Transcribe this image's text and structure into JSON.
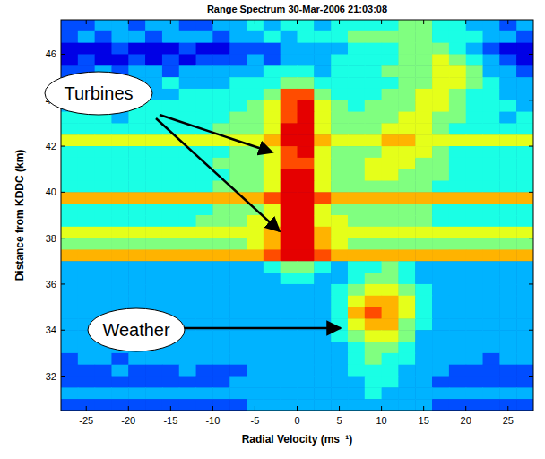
{
  "chart_data": {
    "type": "heatmap",
    "title": "Range Spectrum 30-Mar-2006 21:03:08",
    "x_label": "Radial Velocity (ms⁻¹)",
    "y_label": "Distance from KDDC (km)",
    "annotations": [
      "Turbines",
      "Weather"
    ],
    "xlim": [
      -28,
      28
    ],
    "ylim": [
      30.5,
      47.5
    ],
    "xticks": [
      -25,
      -20,
      -15,
      -10,
      -5,
      0,
      5,
      10,
      15,
      20,
      25
    ],
    "yticks": [
      32,
      34,
      36,
      38,
      40,
      42,
      44,
      46
    ],
    "zlim": [
      0,
      10
    ],
    "grid": false,
    "x": [
      -27,
      -25,
      -23,
      -21,
      -19,
      -17,
      -15,
      -13,
      -11,
      -9,
      -7,
      -5,
      -3,
      -1,
      1,
      3,
      5,
      7,
      9,
      11,
      13,
      15,
      17,
      19,
      21,
      23,
      25,
      27
    ],
    "y": [
      47.25,
      46.75,
      46.25,
      45.75,
      45.25,
      44.75,
      44.25,
      43.75,
      43.25,
      42.75,
      42.25,
      41.75,
      41.25,
      40.75,
      40.25,
      39.75,
      39.25,
      38.75,
      38.25,
      37.75,
      37.25,
      36.75,
      36.25,
      35.75,
      35.25,
      34.75,
      34.25,
      33.75,
      33.25,
      32.75,
      32.25,
      31.75,
      31.25,
      30.75
    ],
    "z": [
      [
        2,
        2,
        3,
        3,
        2,
        3,
        3,
        2,
        2,
        3,
        3,
        4,
        3,
        4,
        4,
        3,
        4,
        4,
        4,
        4,
        5,
        5,
        4,
        4,
        3,
        3,
        2,
        3
      ],
      [
        2,
        3,
        2,
        3,
        3,
        2,
        3,
        3,
        3,
        2,
        3,
        3,
        4,
        3,
        4,
        4,
        4,
        5,
        5,
        5,
        5,
        5,
        4,
        4,
        4,
        3,
        3,
        2
      ],
      [
        1,
        1,
        1,
        2,
        1,
        1,
        1,
        2,
        1,
        1,
        2,
        2,
        2,
        3,
        3,
        3,
        3,
        4,
        4,
        4,
        5,
        5,
        5,
        4,
        3,
        2,
        1,
        1
      ],
      [
        1,
        2,
        1,
        1,
        2,
        1,
        2,
        1,
        2,
        2,
        2,
        3,
        2,
        3,
        3,
        3,
        4,
        4,
        4,
        4,
        5,
        5,
        6,
        5,
        4,
        3,
        2,
        1
      ],
      [
        2,
        2,
        3,
        2,
        3,
        3,
        2,
        3,
        3,
        3,
        3,
        3,
        4,
        4,
        4,
        3,
        4,
        4,
        4,
        5,
        5,
        5,
        6,
        6,
        5,
        3,
        3,
        2
      ],
      [
        3,
        3,
        3,
        3,
        3,
        3,
        4,
        3,
        3,
        3,
        4,
        4,
        4,
        5,
        5,
        4,
        4,
        4,
        4,
        4,
        5,
        5,
        6,
        6,
        5,
        4,
        3,
        3
      ],
      [
        3,
        3,
        4,
        3,
        4,
        3,
        3,
        4,
        4,
        4,
        4,
        4,
        5,
        8,
        8,
        5,
        4,
        4,
        4,
        5,
        5,
        6,
        6,
        5,
        4,
        4,
        3,
        3
      ],
      [
        3,
        4,
        3,
        4,
        4,
        4,
        4,
        4,
        4,
        4,
        4,
        5,
        6,
        8,
        9,
        6,
        5,
        4,
        5,
        5,
        5,
        6,
        6,
        5,
        4,
        4,
        4,
        3
      ],
      [
        4,
        4,
        4,
        3,
        4,
        4,
        4,
        4,
        4,
        4,
        5,
        5,
        6,
        8,
        9,
        6,
        5,
        5,
        5,
        5,
        6,
        6,
        5,
        5,
        4,
        4,
        3,
        4
      ],
      [
        4,
        4,
        4,
        4,
        4,
        4,
        4,
        4,
        4,
        5,
        5,
        5,
        6,
        9,
        9,
        6,
        5,
        5,
        5,
        6,
        6,
        6,
        5,
        4,
        4,
        4,
        4,
        4
      ],
      [
        6,
        6,
        6,
        6,
        6,
        6,
        6,
        6,
        6,
        6,
        6,
        6,
        7,
        9,
        9,
        7,
        6,
        6,
        6,
        7,
        7,
        6,
        6,
        6,
        6,
        6,
        6,
        6
      ],
      [
        4,
        4,
        4,
        4,
        4,
        4,
        4,
        4,
        4,
        4,
        5,
        5,
        6,
        8,
        9,
        6,
        5,
        5,
        5,
        6,
        6,
        6,
        5,
        4,
        4,
        4,
        4,
        4
      ],
      [
        4,
        4,
        4,
        4,
        4,
        4,
        4,
        4,
        4,
        5,
        5,
        5,
        6,
        8,
        8,
        6,
        5,
        5,
        6,
        6,
        6,
        5,
        5,
        4,
        4,
        4,
        4,
        4
      ],
      [
        4,
        4,
        4,
        4,
        4,
        4,
        4,
        4,
        4,
        4,
        5,
        5,
        6,
        9,
        9,
        6,
        5,
        5,
        6,
        6,
        5,
        5,
        5,
        4,
        4,
        4,
        4,
        4
      ],
      [
        4,
        4,
        4,
        4,
        4,
        4,
        4,
        4,
        4,
        5,
        5,
        5,
        6,
        9,
        9,
        6,
        5,
        5,
        5,
        5,
        5,
        5,
        4,
        4,
        4,
        4,
        4,
        4
      ],
      [
        7,
        7,
        7,
        7,
        7,
        7,
        7,
        7,
        7,
        7,
        7,
        7,
        8,
        9,
        9,
        8,
        7,
        7,
        7,
        7,
        7,
        7,
        7,
        7,
        7,
        7,
        7,
        7
      ],
      [
        4,
        4,
        4,
        4,
        4,
        4,
        4,
        4,
        4,
        5,
        5,
        5,
        6,
        9,
        9,
        6,
        5,
        5,
        5,
        5,
        5,
        5,
        4,
        4,
        4,
        4,
        4,
        4
      ],
      [
        4,
        4,
        4,
        4,
        4,
        4,
        4,
        4,
        5,
        5,
        5,
        6,
        6,
        9,
        9,
        6,
        6,
        5,
        5,
        5,
        5,
        5,
        4,
        4,
        4,
        4,
        4,
        4
      ],
      [
        6,
        6,
        6,
        6,
        6,
        6,
        6,
        6,
        6,
        6,
        6,
        6,
        7,
        9,
        9,
        7,
        6,
        6,
        6,
        6,
        6,
        6,
        6,
        6,
        6,
        6,
        6,
        6
      ],
      [
        5,
        5,
        5,
        5,
        5,
        5,
        5,
        5,
        5,
        5,
        5,
        6,
        7,
        9,
        9,
        7,
        6,
        5,
        5,
        5,
        5,
        5,
        5,
        5,
        5,
        5,
        5,
        5
      ],
      [
        7,
        7,
        7,
        7,
        7,
        7,
        7,
        7,
        7,
        7,
        7,
        7,
        8,
        9,
        9,
        8,
        7,
        7,
        7,
        7,
        7,
        7,
        7,
        7,
        7,
        7,
        7,
        7
      ],
      [
        3,
        3,
        3,
        3,
        3,
        3,
        3,
        3,
        3,
        3,
        3,
        3,
        4,
        5,
        5,
        4,
        3,
        4,
        4,
        5,
        4,
        3,
        3,
        3,
        3,
        3,
        3,
        3
      ],
      [
        3,
        3,
        3,
        3,
        3,
        3,
        3,
        3,
        3,
        3,
        3,
        3,
        3,
        4,
        4,
        3,
        3,
        4,
        5,
        5,
        4,
        3,
        3,
        3,
        3,
        3,
        3,
        3
      ],
      [
        3,
        3,
        3,
        3,
        3,
        3,
        3,
        3,
        3,
        3,
        3,
        3,
        3,
        3,
        3,
        3,
        4,
        5,
        6,
        6,
        5,
        4,
        3,
        3,
        3,
        3,
        3,
        3
      ],
      [
        3,
        3,
        3,
        3,
        3,
        3,
        3,
        3,
        3,
        3,
        3,
        3,
        3,
        3,
        3,
        3,
        4,
        6,
        7,
        7,
        6,
        4,
        3,
        3,
        3,
        3,
        3,
        3
      ],
      [
        3,
        3,
        3,
        3,
        3,
        3,
        3,
        3,
        3,
        3,
        3,
        3,
        3,
        3,
        3,
        3,
        4,
        7,
        8,
        7,
        6,
        4,
        3,
        3,
        3,
        3,
        3,
        3
      ],
      [
        3,
        3,
        3,
        3,
        3,
        3,
        3,
        3,
        3,
        3,
        3,
        3,
        3,
        3,
        3,
        3,
        4,
        6,
        7,
        7,
        5,
        4,
        3,
        3,
        3,
        3,
        3,
        3
      ],
      [
        3,
        3,
        3,
        3,
        3,
        3,
        3,
        3,
        3,
        3,
        3,
        3,
        3,
        3,
        3,
        3,
        4,
        5,
        6,
        6,
        5,
        3,
        3,
        3,
        3,
        3,
        3,
        3
      ],
      [
        3,
        3,
        3,
        3,
        3,
        3,
        3,
        3,
        3,
        3,
        3,
        3,
        3,
        3,
        3,
        3,
        3,
        4,
        5,
        5,
        4,
        3,
        3,
        3,
        3,
        3,
        3,
        3
      ],
      [
        2,
        3,
        3,
        2,
        3,
        3,
        3,
        3,
        3,
        3,
        3,
        3,
        3,
        3,
        3,
        3,
        3,
        4,
        5,
        4,
        4,
        3,
        3,
        3,
        3,
        2,
        3,
        3
      ],
      [
        2,
        2,
        2,
        3,
        2,
        2,
        2,
        3,
        2,
        2,
        2,
        3,
        3,
        3,
        3,
        3,
        3,
        4,
        4,
        4,
        3,
        3,
        3,
        2,
        2,
        2,
        2,
        2
      ],
      [
        2,
        2,
        2,
        2,
        2,
        2,
        2,
        2,
        2,
        2,
        3,
        3,
        3,
        3,
        3,
        3,
        3,
        3,
        4,
        4,
        3,
        3,
        2,
        2,
        2,
        2,
        2,
        2
      ],
      [
        3,
        3,
        3,
        3,
        3,
        3,
        3,
        3,
        3,
        3,
        3,
        3,
        3,
        3,
        3,
        3,
        3,
        3,
        4,
        3,
        3,
        3,
        3,
        3,
        3,
        3,
        3,
        3
      ],
      [
        2,
        2,
        2,
        2,
        2,
        2,
        2,
        2,
        2,
        2,
        2,
        3,
        3,
        3,
        3,
        3,
        3,
        3,
        3,
        3,
        3,
        3,
        2,
        2,
        2,
        2,
        2,
        2
      ]
    ]
  }
}
